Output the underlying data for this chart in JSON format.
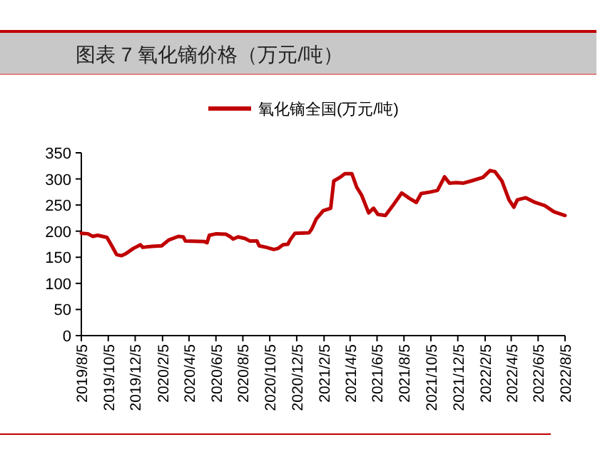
{
  "chart_data": {
    "type": "line",
    "title": "图表 7 氧化镝价格（万元/吨）",
    "legend": "top",
    "x": [
      "2019-08-05",
      "2019-08-20",
      "2019-08-31",
      "2019-09-11",
      "2019-10-02",
      "2019-10-13",
      "2019-10-24",
      "2019-11-04",
      "2019-11-14",
      "2019-12-01",
      "2019-12-17",
      "2019-12-22",
      "2020-01-12",
      "2020-02-03",
      "2020-02-19",
      "2020-03-12",
      "2020-03-23",
      "2020-03-28",
      "2020-05-10",
      "2020-05-16",
      "2020-05-21",
      "2020-06-06",
      "2020-06-28",
      "2020-07-08",
      "2020-07-14",
      "2020-07-25",
      "2020-08-10",
      "2020-08-21",
      "2020-09-06",
      "2020-09-11",
      "2020-09-27",
      "2020-10-14",
      "2020-10-24",
      "2020-11-04",
      "2020-11-15",
      "2020-11-20",
      "2020-12-01",
      "2021-01-02",
      "2021-01-08",
      "2021-01-18",
      "2021-02-03",
      "2021-02-20",
      "2021-02-27",
      "2021-03-13",
      "2021-03-24",
      "2021-04-09",
      "2021-04-20",
      "2021-05-01",
      "2021-05-17",
      "2021-05-28",
      "2021-06-07",
      "2021-06-24",
      "2021-07-10",
      "2021-07-31",
      "2021-08-17",
      "2021-09-02",
      "2021-09-13",
      "2021-10-04",
      "2021-10-20",
      "2021-11-05",
      "2021-11-16",
      "2021-12-02",
      "2021-12-18",
      "2022-01-04",
      "2022-01-31",
      "2022-02-16",
      "2022-02-27",
      "2022-03-15",
      "2022-03-31",
      "2022-04-11",
      "2022-04-19",
      "2022-05-08",
      "2022-05-29",
      "2022-06-20",
      "2022-07-11",
      "2022-08-05"
    ],
    "series": [
      {
        "name": "氧化镝全国(万元/吨)",
        "color": "#c00000",
        "values": [
          196,
          195,
          190,
          192,
          188,
          172,
          155,
          153,
          157,
          167,
          174,
          169,
          171,
          172,
          183,
          190,
          189,
          181,
          180,
          178,
          192,
          195,
          194,
          189,
          185,
          189,
          186,
          181,
          181,
          172,
          169,
          165,
          167,
          174,
          175,
          183,
          196,
          197,
          204,
          223,
          239,
          244,
          296,
          303,
          310,
          310,
          284,
          269,
          235,
          244,
          232,
          230,
          248,
          273,
          263,
          255,
          272,
          275,
          278,
          304,
          292,
          293,
          292,
          296,
          303,
          316,
          314,
          296,
          260,
          246,
          260,
          264,
          255,
          249,
          237,
          230
        ]
      }
    ],
    "ylim": [
      0,
      350
    ],
    "yticks": [
      0,
      50,
      100,
      150,
      200,
      250,
      300,
      350
    ],
    "xlim": [
      "2019-08-05",
      "2022-08-05"
    ],
    "xticks": [
      {
        "value": "2019-08-05",
        "label": "2019/8/5"
      },
      {
        "value": "2019-10-05",
        "label": "2019/10/5"
      },
      {
        "value": "2019-12-05",
        "label": "2019/12/5"
      },
      {
        "value": "2020-02-05",
        "label": "2020/2/5"
      },
      {
        "value": "2020-04-05",
        "label": "2020/4/5"
      },
      {
        "value": "2020-06-05",
        "label": "2020/6/5"
      },
      {
        "value": "2020-08-05",
        "label": "2020/8/5"
      },
      {
        "value": "2020-10-05",
        "label": "2020/10/5"
      },
      {
        "value": "2020-12-05",
        "label": "2020/12/5"
      },
      {
        "value": "2021-02-05",
        "label": "2021/2/5"
      },
      {
        "value": "2021-04-05",
        "label": "2021/4/5"
      },
      {
        "value": "2021-06-05",
        "label": "2021/6/5"
      },
      {
        "value": "2021-08-05",
        "label": "2021/8/5"
      },
      {
        "value": "2021-10-05",
        "label": "2021/10/5"
      },
      {
        "value": "2021-12-05",
        "label": "2021/12/5"
      },
      {
        "value": "2022-02-05",
        "label": "2022/2/5"
      },
      {
        "value": "2022-04-05",
        "label": "2022/4/5"
      },
      {
        "value": "2022-06-05",
        "label": "2022/6/5"
      },
      {
        "value": "2022-08-05",
        "label": "2022/8/5"
      }
    ],
    "grid": false,
    "marker": "none",
    "line_style": "solid"
  }
}
